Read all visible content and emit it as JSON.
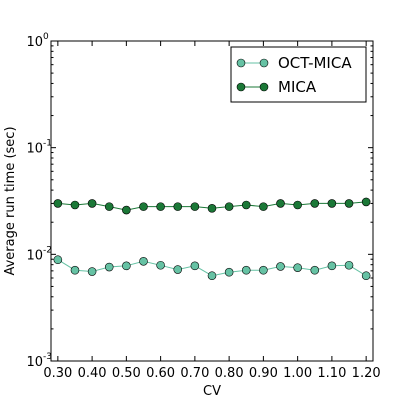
{
  "chart_data": {
    "type": "line",
    "xlabel": "CV",
    "ylabel": "Average run time (sec)",
    "yscale": "log",
    "xlim": [
      0.28,
      1.22
    ],
    "ylim": [
      0.001,
      1
    ],
    "x_ticks": [
      {
        "value": 0.3,
        "label": "0.30"
      },
      {
        "value": 0.4,
        "label": "0.40"
      },
      {
        "value": 0.5,
        "label": "0.50"
      },
      {
        "value": 0.6,
        "label": "0.60"
      },
      {
        "value": 0.7,
        "label": "0.70"
      },
      {
        "value": 0.8,
        "label": "0.80"
      },
      {
        "value": 0.9,
        "label": "0.90"
      },
      {
        "value": 1.0,
        "label": "1.00"
      },
      {
        "value": 1.1,
        "label": "1.10"
      },
      {
        "value": 1.2,
        "label": "1.20"
      }
    ],
    "y_ticks": [
      {
        "value": 0.001,
        "base": "10",
        "exp": "-3"
      },
      {
        "value": 0.01,
        "base": "10",
        "exp": "-2"
      },
      {
        "value": 0.1,
        "base": "10",
        "exp": "-1"
      },
      {
        "value": 1,
        "base": "10",
        "exp": "0"
      }
    ],
    "grid": false,
    "legend_position": "top-right",
    "x": [
      0.3,
      0.35,
      0.4,
      0.45,
      0.5,
      0.55,
      0.6,
      0.65,
      0.7,
      0.75,
      0.8,
      0.85,
      0.9,
      0.95,
      1.0,
      1.05,
      1.1,
      1.15,
      1.2
    ],
    "series": [
      {
        "name": "OCT-MICA",
        "color": "#66c2a4",
        "values": [
          0.0089,
          0.0071,
          0.0069,
          0.0076,
          0.0078,
          0.0086,
          0.0079,
          0.0072,
          0.0078,
          0.0063,
          0.0068,
          0.0071,
          0.0071,
          0.0077,
          0.0075,
          0.0071,
          0.0078,
          0.0079,
          0.0063
        ]
      },
      {
        "name": "MICA",
        "color": "#1b7837",
        "values": [
          0.03,
          0.029,
          0.03,
          0.028,
          0.026,
          0.028,
          0.028,
          0.028,
          0.028,
          0.027,
          0.028,
          0.029,
          0.028,
          0.03,
          0.029,
          0.03,
          0.03,
          0.03,
          0.031
        ]
      }
    ]
  }
}
